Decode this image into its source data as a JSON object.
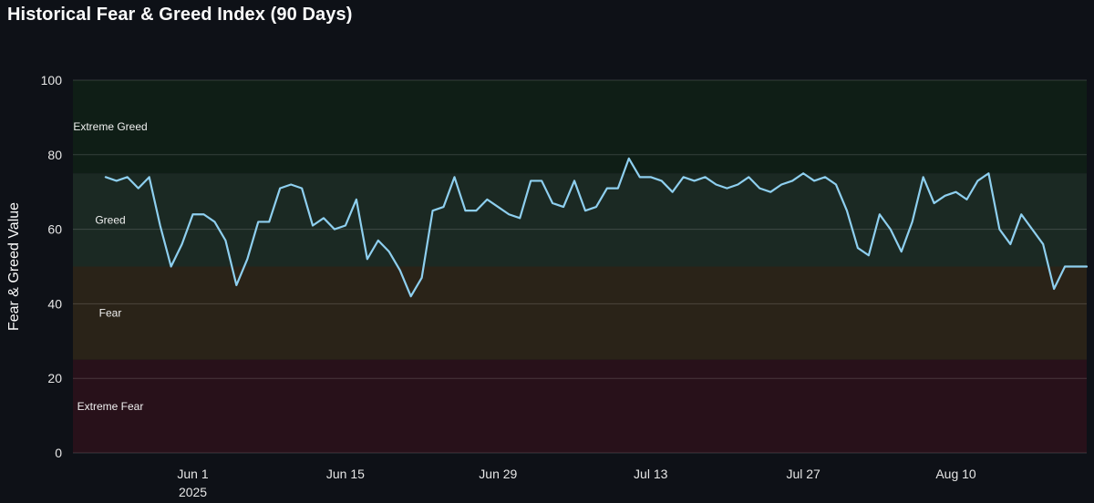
{
  "title": "Historical Fear & Greed Index (90 Days)",
  "chart_data": {
    "type": "line",
    "ylabel": "Fear & Greed Value",
    "xlabel": "",
    "ylim": [
      0,
      100
    ],
    "xlim": [
      "2025-05-21",
      "2025-08-22"
    ],
    "y_ticks": [
      0,
      20,
      40,
      60,
      80,
      100
    ],
    "x_ticks": [
      {
        "date": "2025-06-01",
        "label": "Jun 1",
        "sublabel": "2025"
      },
      {
        "date": "2025-06-15",
        "label": "Jun 15",
        "sublabel": ""
      },
      {
        "date": "2025-06-29",
        "label": "Jun 29",
        "sublabel": ""
      },
      {
        "date": "2025-07-13",
        "label": "Jul 13",
        "sublabel": ""
      },
      {
        "date": "2025-07-27",
        "label": "Jul 27",
        "sublabel": ""
      },
      {
        "date": "2025-08-10",
        "label": "Aug 10",
        "sublabel": ""
      }
    ],
    "grid": true,
    "zones": [
      {
        "label": "Extreme Greed",
        "from": 75,
        "to": 100,
        "color": "#0f1e16"
      },
      {
        "label": "Greed",
        "from": 50,
        "to": 75,
        "color": "#1b2923"
      },
      {
        "label": "Fear",
        "from": 25,
        "to": 50,
        "color": "#2a2318"
      },
      {
        "label": "Extreme Fear",
        "from": 0,
        "to": 25,
        "color": "#28111a"
      }
    ],
    "series": [
      {
        "color": "#8ecfef",
        "x": [
          "2025-05-24",
          "2025-05-25",
          "2025-05-26",
          "2025-05-27",
          "2025-05-28",
          "2025-05-29",
          "2025-05-30",
          "2025-05-31",
          "2025-06-01",
          "2025-06-02",
          "2025-06-03",
          "2025-06-04",
          "2025-06-05",
          "2025-06-06",
          "2025-06-07",
          "2025-06-08",
          "2025-06-09",
          "2025-06-10",
          "2025-06-11",
          "2025-06-12",
          "2025-06-13",
          "2025-06-14",
          "2025-06-15",
          "2025-06-16",
          "2025-06-17",
          "2025-06-18",
          "2025-06-19",
          "2025-06-20",
          "2025-06-21",
          "2025-06-22",
          "2025-06-23",
          "2025-06-24",
          "2025-06-25",
          "2025-06-26",
          "2025-06-27",
          "2025-06-28",
          "2025-06-29",
          "2025-06-30",
          "2025-07-01",
          "2025-07-02",
          "2025-07-03",
          "2025-07-04",
          "2025-07-05",
          "2025-07-06",
          "2025-07-07",
          "2025-07-08",
          "2025-07-09",
          "2025-07-10",
          "2025-07-11",
          "2025-07-12",
          "2025-07-13",
          "2025-07-14",
          "2025-07-15",
          "2025-07-16",
          "2025-07-17",
          "2025-07-18",
          "2025-07-19",
          "2025-07-20",
          "2025-07-21",
          "2025-07-22",
          "2025-07-23",
          "2025-07-24",
          "2025-07-25",
          "2025-07-26",
          "2025-07-27",
          "2025-07-28",
          "2025-07-29",
          "2025-07-30",
          "2025-07-31",
          "2025-08-01",
          "2025-08-02",
          "2025-08-03",
          "2025-08-04",
          "2025-08-05",
          "2025-08-06",
          "2025-08-07",
          "2025-08-08",
          "2025-08-09",
          "2025-08-10",
          "2025-08-11",
          "2025-08-12",
          "2025-08-13",
          "2025-08-14",
          "2025-08-15",
          "2025-08-16",
          "2025-08-17",
          "2025-08-18",
          "2025-08-19",
          "2025-08-20",
          "2025-08-21",
          "2025-08-22"
        ],
        "values": [
          74,
          73,
          74,
          71,
          74,
          61,
          50,
          56,
          64,
          64,
          62,
          57,
          45,
          52,
          62,
          62,
          71,
          72,
          71,
          61,
          63,
          60,
          61,
          68,
          52,
          57,
          54,
          49,
          42,
          47,
          65,
          66,
          74,
          65,
          65,
          68,
          66,
          64,
          63,
          73,
          73,
          67,
          66,
          73,
          65,
          66,
          71,
          71,
          79,
          74,
          74,
          73,
          70,
          74,
          73,
          74,
          72,
          71,
          72,
          74,
          71,
          70,
          72,
          73,
          75,
          73,
          74,
          72,
          65,
          55,
          53,
          64,
          60,
          54,
          62,
          74,
          67,
          69,
          70,
          68,
          73,
          75,
          60,
          56,
          64,
          60,
          56,
          44,
          50,
          50,
          50
        ]
      }
    ]
  }
}
